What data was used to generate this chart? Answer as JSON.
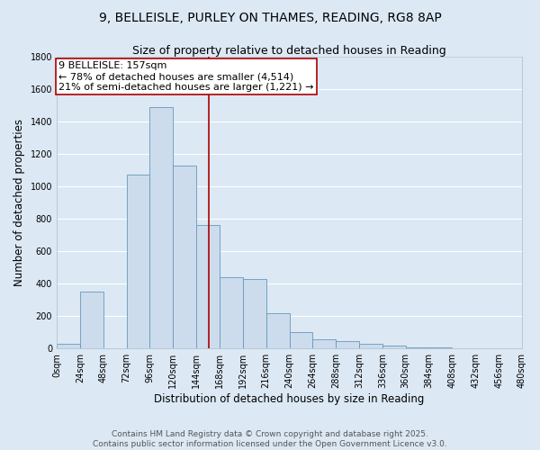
{
  "title1": "9, BELLEISLE, PURLEY ON THAMES, READING, RG8 8AP",
  "title2": "Size of property relative to detached houses in Reading",
  "xlabel": "Distribution of detached houses by size in Reading",
  "ylabel": "Number of detached properties",
  "bar_left_edges": [
    0,
    24,
    48,
    72,
    96,
    120,
    144,
    168,
    192,
    216,
    240,
    264,
    288,
    312,
    336,
    360,
    384,
    408,
    432,
    456
  ],
  "bar_heights": [
    30,
    350,
    0,
    1075,
    1490,
    1130,
    760,
    440,
    430,
    220,
    100,
    55,
    45,
    30,
    20,
    10,
    5,
    2,
    1,
    0
  ],
  "bin_width": 24,
  "bar_color": "#ccdcec",
  "bar_edge_color": "#6699bb",
  "property_x": 157,
  "red_line_color": "#aa0000",
  "annotation_text": "9 BELLEISLE: 157sqm\n← 78% of detached houses are smaller (4,514)\n21% of semi-detached houses are larger (1,221) →",
  "annotation_box_color": "#ffffff",
  "annotation_box_edge": "#aa0000",
  "xlim_left": 0,
  "xlim_right": 480,
  "ylim_bottom": 0,
  "ylim_top": 1800,
  "yticks": [
    0,
    200,
    400,
    600,
    800,
    1000,
    1200,
    1400,
    1600,
    1800
  ],
  "xtick_labels": [
    "0sqm",
    "24sqm",
    "48sqm",
    "72sqm",
    "96sqm",
    "120sqm",
    "144sqm",
    "168sqm",
    "192sqm",
    "216sqm",
    "240sqm",
    "264sqm",
    "288sqm",
    "312sqm",
    "336sqm",
    "360sqm",
    "384sqm",
    "408sqm",
    "432sqm",
    "456sqm",
    "480sqm"
  ],
  "xtick_positions": [
    0,
    24,
    48,
    72,
    96,
    120,
    144,
    168,
    192,
    216,
    240,
    264,
    288,
    312,
    336,
    360,
    384,
    408,
    432,
    456,
    480
  ],
  "background_color": "#dce8f4",
  "plot_bg_color": "#dce8f4",
  "grid_color": "#ffffff",
  "footer_text": "Contains HM Land Registry data © Crown copyright and database right 2025.\nContains public sector information licensed under the Open Government Licence v3.0.",
  "title_fontsize": 10,
  "subtitle_fontsize": 9,
  "axis_label_fontsize": 8.5,
  "tick_fontsize": 7,
  "annotation_fontsize": 8,
  "footer_fontsize": 6.5
}
